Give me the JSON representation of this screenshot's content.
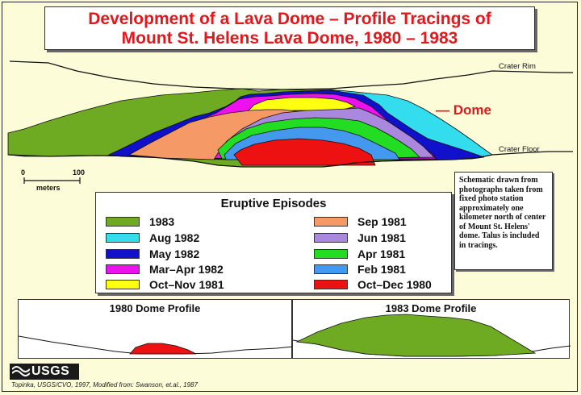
{
  "title": {
    "line1": "Development of a Lava Dome – Profile Tracings of",
    "line2": "Mount St. Helens Lava Dome, 1980 – 1983"
  },
  "labels": {
    "crater_rim": "Crater Rim",
    "crater_floor": "Crater Floor",
    "dome": "— Dome"
  },
  "scale_bar": {
    "start": "0",
    "end": "100",
    "unit": "meters"
  },
  "legend": {
    "title": "Eruptive Episodes",
    "items": [
      {
        "label": "1983",
        "color": "#6eaa22"
      },
      {
        "label": "Aug 1982",
        "color": "#33ddee"
      },
      {
        "label": "May 1982",
        "color": "#1111cc"
      },
      {
        "label": "Mar–Apr 1982",
        "color": "#ee11ee"
      },
      {
        "label": "Oct–Nov 1981",
        "color": "#ffff11"
      },
      {
        "label": "Sep 1981",
        "color": "#f59966"
      },
      {
        "label": "Jun 1981",
        "color": "#aa88dd"
      },
      {
        "label": "Apr 1981",
        "color": "#22dd22"
      },
      {
        "label": "Feb 1981",
        "color": "#4499ee"
      },
      {
        "label": "Oct–Dec 1980",
        "color": "#ee1111"
      }
    ]
  },
  "note": "Schematic drawn from photographs taken from fixed photo station approximately one kilometer north of center of Mount St. Helens' dome. Talus is included in tracings.",
  "profiles": {
    "left_title": "1980 Dome Profile",
    "right_title": "1983 Dome Profile"
  },
  "logo": "USGS",
  "credit": "Topinka, USGS/CVO, 1997, Modified from: Swanson, et.al., 1987",
  "colors": {
    "title_red": "#e0191e",
    "background": "#fdfcd8"
  }
}
